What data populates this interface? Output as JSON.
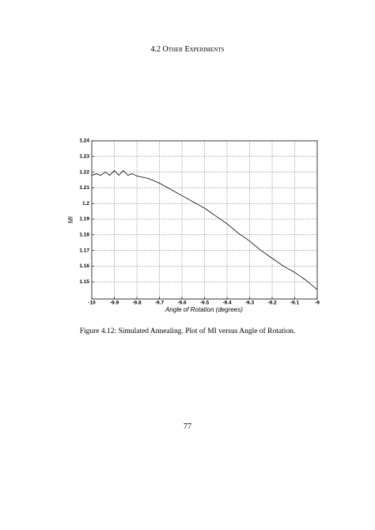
{
  "header": {
    "title": "4.2 Other Experiments"
  },
  "chart_data": {
    "type": "line",
    "xlabel": "Angle of Rotation (degrees)",
    "ylabel": "MI",
    "x": [
      -10,
      -9.98,
      -9.96,
      -9.94,
      -9.92,
      -9.9,
      -9.88,
      -9.86,
      -9.84,
      -9.82,
      -9.8,
      -9.75,
      -9.7,
      -9.65,
      -9.6,
      -9.55,
      -9.5,
      -9.45,
      -9.4,
      -9.35,
      -9.3,
      -9.25,
      -9.2,
      -9.15,
      -9.1,
      -9.05,
      -9
    ],
    "values": [
      1.218,
      1.219,
      1.218,
      1.22,
      1.218,
      1.221,
      1.218,
      1.221,
      1.218,
      1.219,
      1.2175,
      1.216,
      1.213,
      1.209,
      1.205,
      1.201,
      1.197,
      1.192,
      1.187,
      1.181,
      1.176,
      1.17,
      1.165,
      1.16,
      1.156,
      1.151,
      1.145
    ],
    "color": "#000000",
    "xlim": [
      -10,
      -9
    ],
    "xticks": [
      -10,
      -9.9,
      -9.8,
      -9.7,
      -9.6,
      -9.5,
      -9.4,
      -9.3,
      -9.2,
      -9.1,
      -9
    ],
    "ylim": [
      1.139,
      1.24
    ],
    "yticks": [
      1.15,
      1.16,
      1.17,
      1.18,
      1.19,
      1.2,
      1.21,
      1.22,
      1.23,
      1.24
    ],
    "grid": true
  },
  "caption": "Figure 4.12: Simulated Annealing. Plot of MI versus Angle of Rotation.",
  "page_number": "77"
}
